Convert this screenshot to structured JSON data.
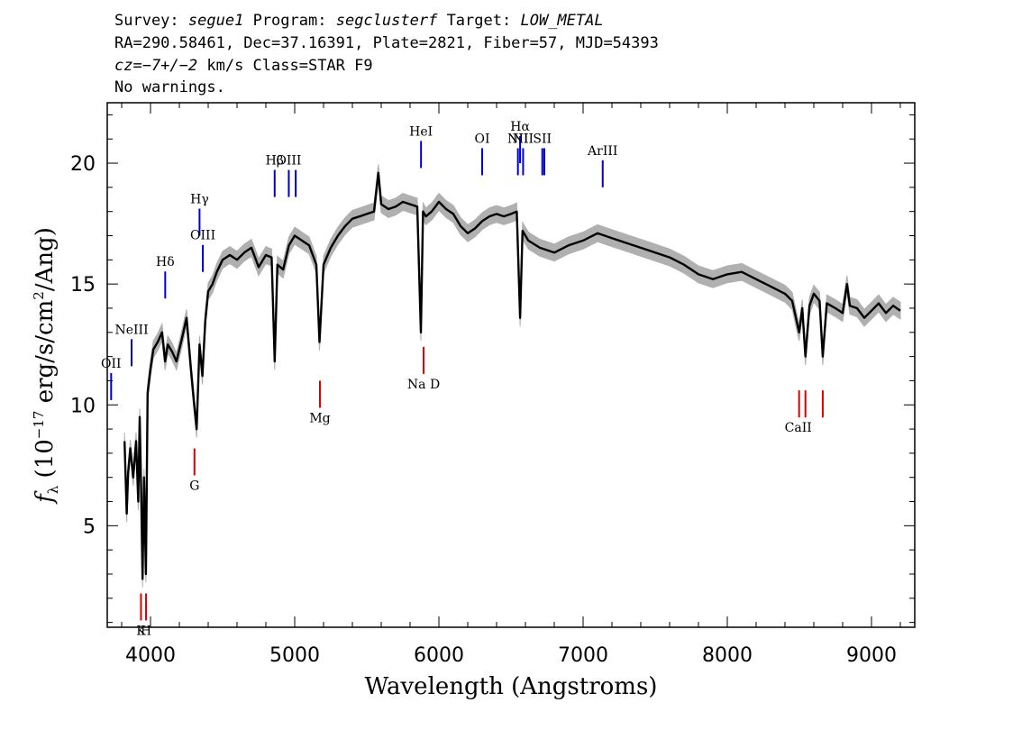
{
  "header": {
    "line1": {
      "survey_label": "Survey:",
      "survey": "segue1",
      "program_label": "Program:",
      "program": "segclusterf",
      "target_label": "Target:",
      "target": "LOW_METAL"
    },
    "line2": "RA=290.58461, Dec=37.16391, Plate=2821, Fiber=57, MJD=54393",
    "line3": {
      "cz": "cz=−7+/−2",
      "units": "km/s Class=STAR F9"
    },
    "line4": "No warnings."
  },
  "colors": {
    "spectrum": "#000000",
    "error_band": "#b0b0b0",
    "emission": "#0000cc",
    "absorption": "#dd0000"
  },
  "chart_data": {
    "type": "line",
    "title": "",
    "xlabel": "Wavelength (Angstroms)",
    "ylabel_main": "f",
    "ylabel_sub": "λ",
    "ylabel_rest": "(10",
    "ylabel_exp": "−17",
    "ylabel_units": "erg/s/cm",
    "ylabel_sq": "2",
    "ylabel_end": "/Ang)",
    "xlim": [
      3700,
      9300
    ],
    "ylim": [
      0.8,
      22.5
    ],
    "xticks": [
      4000,
      5000,
      6000,
      7000,
      8000,
      9000
    ],
    "xtick_labels": [
      "4000",
      "5000",
      "6000",
      "7000",
      "8000",
      "9000"
    ],
    "yticks": [
      5,
      10,
      15,
      20
    ],
    "ytick_labels": [
      "5",
      "10",
      "15",
      "20"
    ],
    "spectrum": {
      "x": [
        3820,
        3835,
        3845,
        3860,
        3880,
        3900,
        3915,
        3925,
        3935,
        3945,
        3955,
        3968,
        3980,
        4000,
        4020,
        4050,
        4080,
        4101,
        4120,
        4150,
        4180,
        4220,
        4250,
        4280,
        4300,
        4320,
        4340,
        4360,
        4380,
        4400,
        4430,
        4460,
        4500,
        4550,
        4600,
        4650,
        4700,
        4750,
        4800,
        4840,
        4861,
        4880,
        4920,
        4960,
        5000,
        5050,
        5100,
        5150,
        5172,
        5200,
        5250,
        5300,
        5350,
        5400,
        5450,
        5500,
        5550,
        5580,
        5600,
        5650,
        5700,
        5750,
        5800,
        5850,
        5875,
        5890,
        5910,
        5950,
        6000,
        6050,
        6100,
        6150,
        6200,
        6250,
        6300,
        6350,
        6400,
        6450,
        6500,
        6540,
        6563,
        6580,
        6620,
        6700,
        6800,
        6900,
        7000,
        7100,
        7200,
        7300,
        7400,
        7500,
        7600,
        7700,
        7800,
        7900,
        8000,
        8100,
        8200,
        8300,
        8400,
        8450,
        8498,
        8520,
        8542,
        8570,
        8600,
        8640,
        8662,
        8690,
        8750,
        8800,
        8830,
        8850,
        8900,
        8950,
        9000,
        9050,
        9100,
        9150,
        9200
      ],
      "y": [
        8.5,
        5.5,
        7.2,
        8.2,
        7.0,
        8.5,
        6.0,
        9.5,
        6.5,
        2.8,
        7.0,
        3.0,
        10.5,
        11.5,
        12.3,
        12.6,
        13.0,
        11.8,
        12.5,
        12.2,
        11.8,
        12.8,
        13.6,
        11.5,
        10.2,
        9.0,
        12.5,
        11.2,
        13.5,
        14.7,
        15.0,
        15.5,
        16.0,
        16.2,
        16.0,
        16.3,
        16.5,
        15.7,
        16.2,
        16.1,
        11.8,
        15.8,
        15.6,
        16.6,
        17.0,
        16.8,
        16.6,
        15.8,
        12.6,
        15.8,
        16.5,
        17.0,
        17.4,
        17.7,
        17.8,
        17.9,
        18.0,
        19.6,
        18.3,
        18.1,
        18.2,
        18.4,
        18.3,
        18.2,
        13.0,
        18.0,
        17.8,
        18.0,
        18.4,
        18.1,
        17.9,
        17.4,
        17.1,
        17.3,
        17.6,
        17.8,
        17.9,
        17.8,
        17.9,
        18.0,
        13.6,
        17.2,
        16.8,
        16.5,
        16.3,
        16.6,
        16.8,
        17.1,
        16.9,
        16.7,
        16.5,
        16.3,
        16.1,
        15.8,
        15.4,
        15.2,
        15.4,
        15.5,
        15.2,
        14.9,
        14.6,
        14.3,
        13.0,
        14.0,
        12.0,
        14.1,
        14.6,
        14.3,
        12.0,
        14.2,
        14.0,
        13.8,
        15.0,
        14.1,
        14.0,
        13.6,
        13.9,
        14.2,
        13.8,
        14.1,
        13.9
      ]
    },
    "emission_lines": [
      {
        "label": "OII",
        "wave": 3727,
        "y": 10.2
      },
      {
        "label": "NeIII",
        "wave": 3869,
        "y": 11.6
      },
      {
        "label": "Hδ",
        "wave": 4102,
        "y": 14.4
      },
      {
        "label": "Hγ",
        "wave": 4340,
        "y": 17.0
      },
      {
        "label": "OIII",
        "wave": 4363,
        "y": 15.5
      },
      {
        "label": "Hβ",
        "wave": 4861,
        "y": 18.6
      },
      {
        "label": "OIII",
        "wave": 4959,
        "y": 18.6
      },
      {
        "label": "OIII",
        "wave": 5007,
        "y": 18.6
      },
      {
        "label": "HeI",
        "wave": 5876,
        "y": 19.8
      },
      {
        "label": "OI",
        "wave": 6300,
        "y": 19.5
      },
      {
        "label": "NII",
        "wave": 6548,
        "y": 19.5
      },
      {
        "label": "Hα",
        "wave": 6563,
        "y": 20.0
      },
      {
        "label": "NII",
        "wave": 6584,
        "y": 19.5
      },
      {
        "label": "SII",
        "wave": 6717,
        "y": 19.5
      },
      {
        "label": "SII",
        "wave": 6731,
        "y": 19.5
      },
      {
        "label": "ArIII",
        "wave": 7136,
        "y": 19.0
      }
    ],
    "absorption_lines": [
      {
        "label": "K",
        "wave": 3934
      },
      {
        "label": "H",
        "wave": 3969
      },
      {
        "label": "G",
        "wave": 4305
      },
      {
        "label": "Mg",
        "wave": 5175
      },
      {
        "label": "Na D",
        "wave": 5894
      },
      {
        "label": "CaII",
        "wave": 8498
      },
      {
        "label": "CaII",
        "wave": 8542
      },
      {
        "label": "CaII",
        "wave": 8662
      }
    ],
    "grid": false,
    "legend": "none"
  }
}
